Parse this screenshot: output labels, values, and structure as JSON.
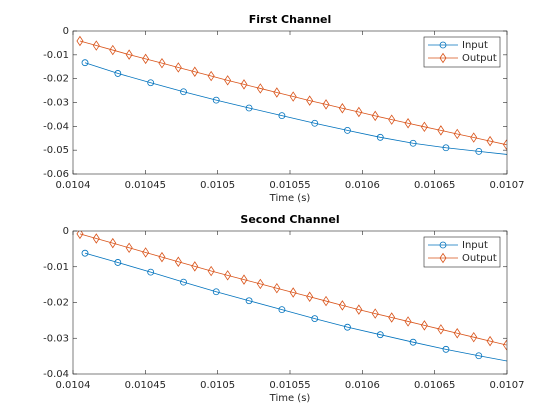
{
  "chart_data": [
    {
      "type": "line",
      "title": "First Channel",
      "x_label": "Time (s)",
      "xlim": [
        0.0104,
        0.0107
      ],
      "xticks": [
        0.0104,
        0.01045,
        0.0105,
        0.01055,
        0.0106,
        0.01065,
        0.0107
      ],
      "ylim": [
        -0.06,
        0
      ],
      "yticks": [
        0,
        -0.01,
        -0.02,
        -0.03,
        -0.04,
        -0.05,
        -0.06
      ],
      "legend": "northeast",
      "series": [
        {
          "name": "Input",
          "color": "#0072BD",
          "marker": "circle",
          "x": [
            0.0104083,
            0.010431,
            0.0104537,
            0.0104764,
            0.010499,
            0.0105217,
            0.0105444,
            0.0105671,
            0.0105897,
            0.0106124,
            0.0106351,
            0.0106578,
            0.0106805,
            0.0107032
          ],
          "values": [
            -0.0133,
            -0.0178,
            -0.0217,
            -0.0255,
            -0.029,
            -0.0323,
            -0.0355,
            -0.0387,
            -0.0417,
            -0.0446,
            -0.0471,
            -0.049,
            -0.0505,
            -0.052
          ]
        },
        {
          "name": "Output",
          "color": "#D95319",
          "marker": "diamond",
          "x": [
            0.0104048,
            0.0104161,
            0.0104275,
            0.0104388,
            0.0104502,
            0.0104615,
            0.0104728,
            0.0104842,
            0.0104955,
            0.0105069,
            0.0105182,
            0.0105295,
            0.0105409,
            0.0105522,
            0.0105636,
            0.0105749,
            0.0105862,
            0.0105976,
            0.0106089,
            0.0106203,
            0.0106316,
            0.0106429,
            0.0106543,
            0.0106656,
            0.010677,
            0.0106883,
            0.0106996
          ],
          "values": [
            -0.0042,
            -0.0061,
            -0.008,
            -0.0099,
            -0.0117,
            -0.0135,
            -0.0153,
            -0.0171,
            -0.0189,
            -0.0207,
            -0.0224,
            -0.0241,
            -0.0258,
            -0.0275,
            -0.0292,
            -0.0308,
            -0.0324,
            -0.034,
            -0.0356,
            -0.0372,
            -0.0387,
            -0.0402,
            -0.0417,
            -0.0432,
            -0.0447,
            -0.0462,
            -0.0477
          ]
        }
      ]
    },
    {
      "type": "line",
      "title": "Second Channel",
      "x_label": "Time (s)",
      "xlim": [
        0.0104,
        0.0107
      ],
      "xticks": [
        0.0104,
        0.01045,
        0.0105,
        0.01055,
        0.0106,
        0.01065,
        0.0107
      ],
      "ylim": [
        -0.04,
        0
      ],
      "yticks": [
        0,
        -0.01,
        -0.02,
        -0.03,
        -0.04
      ],
      "legend": "northeast",
      "series": [
        {
          "name": "Input",
          "color": "#0072BD",
          "marker": "circle",
          "x": [
            0.0104083,
            0.010431,
            0.0104537,
            0.0104764,
            0.010499,
            0.0105217,
            0.0105444,
            0.0105671,
            0.0105897,
            0.0106124,
            0.0106351,
            0.0106578,
            0.0106805,
            0.0107032
          ],
          "values": [
            -0.0062,
            -0.0088,
            -0.0115,
            -0.0143,
            -0.017,
            -0.0195,
            -0.022,
            -0.0245,
            -0.0269,
            -0.029,
            -0.0311,
            -0.0331,
            -0.0349,
            -0.0366
          ]
        },
        {
          "name": "Output",
          "color": "#D95319",
          "marker": "diamond",
          "x": [
            0.0104048,
            0.0104161,
            0.0104275,
            0.0104388,
            0.0104502,
            0.0104615,
            0.0104728,
            0.0104842,
            0.0104955,
            0.0105069,
            0.0105182,
            0.0105295,
            0.0105409,
            0.0105522,
            0.0105636,
            0.0105749,
            0.0105862,
            0.0105976,
            0.0106089,
            0.0106203,
            0.0106316,
            0.0106429,
            0.0106543,
            0.0106656,
            0.010677,
            0.0106883,
            0.0106996
          ],
          "values": [
            -0.0008,
            -0.0021,
            -0.0034,
            -0.0047,
            -0.006,
            -0.0073,
            -0.0086,
            -0.0099,
            -0.0112,
            -0.0124,
            -0.0136,
            -0.0148,
            -0.016,
            -0.0172,
            -0.0184,
            -0.0196,
            -0.0208,
            -0.022,
            -0.0231,
            -0.0242,
            -0.0253,
            -0.0264,
            -0.0275,
            -0.0286,
            -0.0297,
            -0.0308,
            -0.0319
          ]
        }
      ]
    }
  ]
}
